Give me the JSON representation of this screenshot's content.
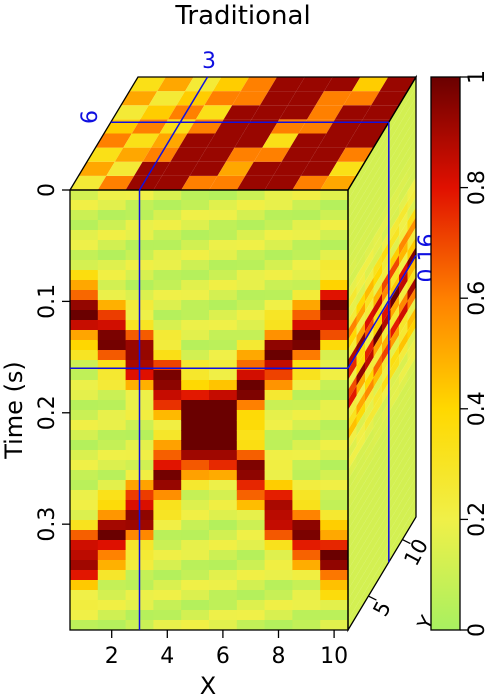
{
  "chart_data": {
    "type": "heatmap",
    "title": "Traditional",
    "front_panel": {
      "xlabel": "X",
      "ylabel": "Time (s)",
      "xticks": [
        "2",
        "4",
        "6",
        "8",
        "10"
      ],
      "xlim": [
        0.5,
        10.5
      ],
      "yticks": [
        "0",
        "0.1",
        "0.2",
        "0.3"
      ],
      "ylim": [
        0,
        0.395
      ],
      "x_centers": [
        1,
        2,
        3,
        4,
        5,
        6,
        7,
        8,
        9,
        10
      ],
      "amplitude_peak_time_s": [
        0.11,
        0.13,
        0.15,
        0.175,
        0.2,
        0.2,
        0.175,
        0.15,
        0.13,
        0.11
      ],
      "ghost_peak_time_s": [
        0.33,
        0.31,
        0.29,
        0.255,
        0.23,
        0.23,
        0.255,
        0.29,
        0.31,
        0.33
      ]
    },
    "top_panel": {
      "depth_label": "Y",
      "x_values": [
        1,
        2,
        3,
        4,
        5,
        6,
        7,
        8,
        9,
        10
      ],
      "dark_x_positions": [
        3,
        4,
        7,
        8
      ]
    },
    "side_panel": {
      "yticks": [
        "5",
        "10"
      ]
    },
    "slice_markers": {
      "x": "3",
      "y": "6",
      "time": "0.16"
    },
    "colorbar": {
      "ticks": [
        "0",
        "0.2",
        "0.4",
        "0.6",
        "0.8",
        "1"
      ],
      "range": [
        0,
        1
      ],
      "colormap": [
        "#a8f060",
        "#f0f048",
        "#ffd800",
        "#ff8000",
        "#e01000",
        "#6a0000"
      ]
    },
    "colors": {
      "slice_lines": "#1010e0"
    }
  }
}
